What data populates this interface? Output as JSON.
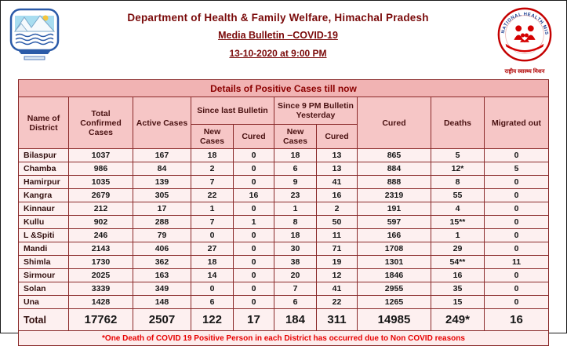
{
  "header": {
    "department": "Department of Health & Family Welfare, Himachal Pradesh",
    "bulletin": "Media Bulletin –COVID-19",
    "datetime": "13-10-2020 at 9:00 PM"
  },
  "logos": {
    "left": {
      "name": "himachal-pradesh-government-emblem"
    },
    "right": {
      "name": "national-health-mission-logo",
      "ring_text": "NATIONAL HEALTH MISSION",
      "caption": "राष्ट्रीय स्वास्थ्य मिशन"
    }
  },
  "colors": {
    "border_maroon": "#8a2a2a",
    "title_bar_pink": "#f1b3b3",
    "header_pink": "#f6c6c6",
    "row_pink": "#fdf0f0",
    "title_text": "#8b0000",
    "footnote_red": "#e80000",
    "nhm_red": "#c40000",
    "hp_blue": "#2a5aa8"
  },
  "table": {
    "title": "Details of Positive Cases till now",
    "columns": {
      "district": "Name of District",
      "total_confirmed": "Total Confirmed Cases",
      "active": "Active Cases",
      "since_last_bulletin": "Since last Bulletin",
      "since_9pm_yesterday": "Since 9 PM Bulletin Yesterday",
      "sub_new_cases": "New Cases",
      "sub_cured": "Cured",
      "cured": "Cured",
      "deaths": "Deaths",
      "migrated_out": "Migrated out"
    },
    "rows": [
      [
        "Bilaspur",
        "1037",
        "167",
        "18",
        "0",
        "18",
        "13",
        "865",
        "5",
        "0"
      ],
      [
        "Chamba",
        "986",
        "84",
        "2",
        "0",
        "6",
        "13",
        "884",
        "12*",
        "5"
      ],
      [
        "Hamirpur",
        "1035",
        "139",
        "7",
        "0",
        "9",
        "41",
        "888",
        "8",
        "0"
      ],
      [
        "Kangra",
        "2679",
        "305",
        "22",
        "16",
        "23",
        "16",
        "2319",
        "55",
        "0"
      ],
      [
        "Kinnaur",
        "212",
        "17",
        "1",
        "0",
        "1",
        "2",
        "191",
        "4",
        "0"
      ],
      [
        "Kullu",
        "902",
        "288",
        "7",
        "1",
        "8",
        "50",
        "597",
        "15**",
        "0"
      ],
      [
        "L &Spiti",
        "246",
        "79",
        "0",
        "0",
        "18",
        "11",
        "166",
        "1",
        "0"
      ],
      [
        "Mandi",
        "2143",
        "406",
        "27",
        "0",
        "30",
        "71",
        "1708",
        "29",
        "0"
      ],
      [
        "Shimla",
        "1730",
        "362",
        "18",
        "0",
        "38",
        "19",
        "1301",
        "54**",
        "11"
      ],
      [
        "Sirmour",
        "2025",
        "163",
        "14",
        "0",
        "20",
        "12",
        "1846",
        "16",
        "0"
      ],
      [
        "Solan",
        "3339",
        "349",
        "0",
        "0",
        "7",
        "41",
        "2955",
        "35",
        "0"
      ],
      [
        "Una",
        "1428",
        "148",
        "6",
        "0",
        "6",
        "22",
        "1265",
        "15",
        "0"
      ]
    ],
    "total_row": [
      "Total",
      "17762",
      "2507",
      "122",
      "17",
      "184",
      "311",
      "14985",
      "249*",
      "16"
    ],
    "footnote": "*One Death of COVID 19 Positive Person in each District has occurred due to Non COVID reasons"
  }
}
